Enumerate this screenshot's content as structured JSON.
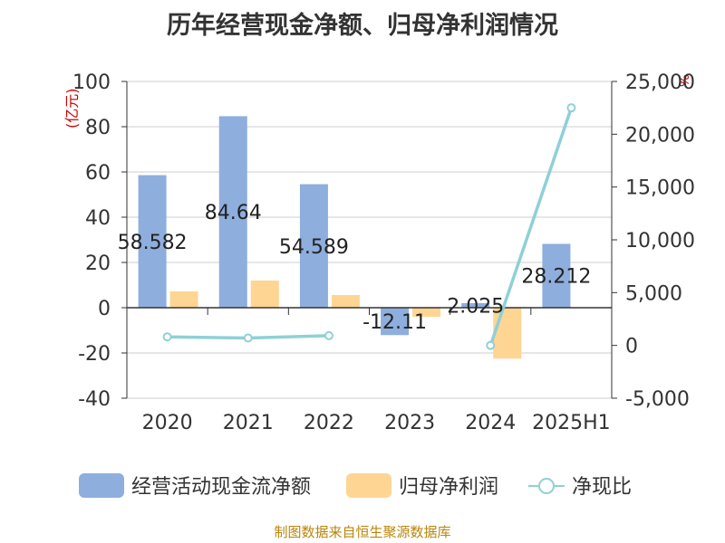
{
  "title": "历年经营现金净额、归母净利润情况",
  "unit_left": "(亿元)",
  "unit_right": "%",
  "source": "制图数据来自恒生聚源数据库",
  "colors": {
    "cash_flow": "#8eaedd",
    "net_profit": "#fed593",
    "ratio": "#8fd0d7",
    "axis": "#333333",
    "grid": "#cccccc",
    "unit": "#cc0000",
    "source": "#b8860b"
  },
  "chart_data": {
    "type": "bar",
    "title": "历年经营现金净额、归母净利润情况",
    "categories": [
      "2020",
      "2021",
      "2022",
      "2023",
      "2024",
      "2025H1"
    ],
    "y_left": {
      "label": "(亿元)",
      "min": -40,
      "max": 100,
      "step": 20,
      "ticks": [
        "100",
        "80",
        "60",
        "40",
        "20",
        "0",
        "-20",
        "-40"
      ]
    },
    "y_right": {
      "label": "%",
      "min": -5000,
      "max": 25000,
      "step": 5000,
      "ticks": [
        "25,000",
        "20,000",
        "15,000",
        "10,000",
        "5,000",
        "0",
        "-5,000"
      ]
    },
    "series": [
      {
        "name": "经营活动现金流净额",
        "type": "bar",
        "axis": "left",
        "values": [
          58.582,
          84.64,
          54.589,
          -12.11,
          2.025,
          28.212
        ],
        "labels": [
          "58.582",
          "84.64",
          "54.589",
          "-12.11",
          "2.025",
          "28.212"
        ]
      },
      {
        "name": "归母净利润",
        "type": "bar",
        "axis": "left",
        "values": [
          7.2,
          12.0,
          5.6,
          -4.0,
          -22.5,
          null
        ]
      },
      {
        "name": "净现比",
        "type": "line",
        "axis": "right",
        "values": [
          810,
          700,
          920,
          null,
          0,
          22500
        ]
      }
    ],
    "grid": true,
    "legend_position": "bottom"
  }
}
